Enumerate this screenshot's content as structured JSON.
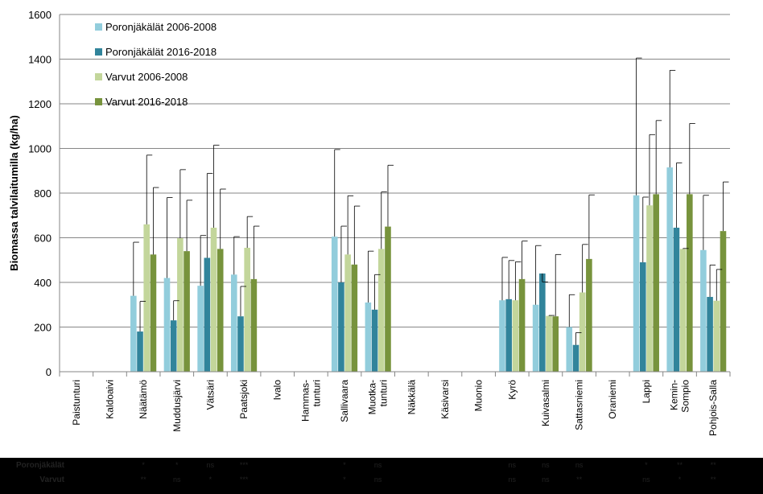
{
  "chart_data": {
    "type": "bar",
    "title": "",
    "xlabel": "",
    "ylabel": "Biomassa talvilaitumilla (kg/ha)",
    "ylim": [
      0,
      1600
    ],
    "yticks": [
      0,
      200,
      400,
      600,
      800,
      1000,
      1200,
      1400,
      1600
    ],
    "grid": true,
    "legend_position": "top-left",
    "categories": [
      [
        "Paistunturi"
      ],
      [
        "Kaldoaivi"
      ],
      [
        "Näätämö"
      ],
      [
        "Muddusjärvi"
      ],
      [
        "Vätsäri"
      ],
      [
        "Paatsjoki"
      ],
      [
        "Ivalo"
      ],
      [
        "Hammas-",
        "tunturi"
      ],
      [
        "Sallivaara"
      ],
      [
        "Muotka-",
        "tunturi"
      ],
      [
        "Näkkälä"
      ],
      [
        "Käsivarsi"
      ],
      [
        "Muonio"
      ],
      [
        "Kyrö"
      ],
      [
        "Kuivasalmi"
      ],
      [
        "Sattasniemi"
      ],
      [
        "Oraniemi"
      ],
      [
        "Lappi"
      ],
      [
        "Kemin-",
        "Sompio"
      ],
      [
        "Pohjois-Salla"
      ]
    ],
    "series": [
      {
        "name": "Poronjäkälät 2006-2008",
        "color": "#92cddc",
        "values": [
          null,
          null,
          340,
          420,
          385,
          435,
          null,
          null,
          605,
          310,
          null,
          null,
          null,
          320,
          300,
          200,
          null,
          790,
          915,
          545
        ],
        "error": [
          null,
          null,
          580,
          780,
          610,
          605,
          null,
          null,
          995,
          540,
          null,
          null,
          null,
          512,
          565,
          345,
          null,
          1405,
          1350,
          790
        ]
      },
      {
        "name": "Poronjäkälät 2016-2018",
        "color": "#31849b",
        "values": [
          null,
          null,
          180,
          230,
          510,
          248,
          null,
          null,
          400,
          278,
          null,
          null,
          null,
          325,
          440,
          120,
          null,
          490,
          645,
          335
        ],
        "error": [
          null,
          null,
          315,
          318,
          888,
          382,
          null,
          null,
          652,
          435,
          null,
          null,
          null,
          498,
          402,
          175,
          null,
          782,
          935,
          478
        ]
      },
      {
        "name": "Varvut 2006-2008",
        "color": "#c3d69b",
        "values": [
          null,
          null,
          660,
          598,
          645,
          555,
          null,
          null,
          525,
          550,
          null,
          null,
          null,
          320,
          250,
          355,
          null,
          745,
          550,
          318
        ],
        "error": [
          null,
          null,
          970,
          905,
          1015,
          695,
          null,
          null,
          788,
          805,
          null,
          null,
          null,
          492,
          252,
          570,
          null,
          1062,
          552,
          458
        ]
      },
      {
        "name": "Varvut 2016-2018",
        "color": "#77933c",
        "values": [
          null,
          null,
          525,
          540,
          550,
          415,
          null,
          null,
          480,
          650,
          null,
          null,
          null,
          415,
          248,
          505,
          null,
          795,
          795,
          630
        ],
        "error": [
          null,
          null,
          825,
          768,
          818,
          652,
          null,
          null,
          742,
          925,
          null,
          null,
          null,
          585,
          525,
          792,
          null,
          1125,
          1112,
          850
        ]
      }
    ]
  },
  "significance": {
    "rows": [
      {
        "label": "Poronjäkälät",
        "marks": [
          "",
          "",
          "*",
          "*",
          "ns",
          "***",
          "",
          "",
          "*",
          "ns",
          "",
          "",
          "",
          "ns",
          "ns",
          "ns",
          "",
          "*",
          "**",
          "**"
        ]
      },
      {
        "label": "Varvut",
        "marks": [
          "",
          "",
          "**",
          "ns",
          "*",
          "***",
          "",
          "",
          "*",
          "ns",
          "",
          "",
          "",
          "ns",
          "ns",
          "**",
          "",
          "ns",
          "*",
          "**"
        ]
      }
    ]
  }
}
